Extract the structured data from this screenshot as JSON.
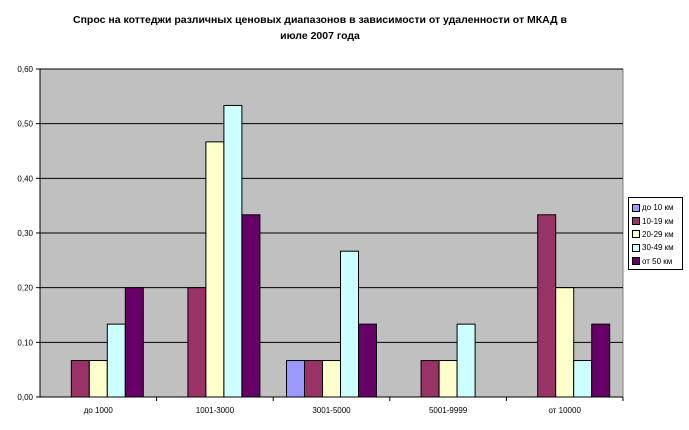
{
  "chart_data": {
    "type": "bar",
    "title": "Спрос на коттеджи различных ценовых диапазонов в зависимости от удаленности от МКАД в июле 2007 года",
    "categories": [
      "до 1000",
      "1001-3000",
      "3001-5000",
      "5001-9999",
      "от 10000"
    ],
    "series": [
      {
        "name": "до 10 км",
        "color": "#9999ff",
        "values": [
          0,
          0,
          0.0667,
          0,
          0
        ]
      },
      {
        "name": "10-19 км",
        "color": "#993366",
        "values": [
          0.0667,
          0.2,
          0.0667,
          0.0667,
          0.3333
        ]
      },
      {
        "name": "20-29 км",
        "color": "#ffffcc",
        "values": [
          0.0667,
          0.4667,
          0.0667,
          0.0667,
          0.2
        ]
      },
      {
        "name": "30-49 км",
        "color": "#ccffff",
        "values": [
          0.1333,
          0.5333,
          0.2667,
          0.1333,
          0.0667
        ]
      },
      {
        "name": "от 50 км",
        "color": "#660066",
        "values": [
          0.2,
          0.3333,
          0.1333,
          0,
          0.1333
        ]
      }
    ],
    "y_ticks": [
      "0,00",
      "0,10",
      "0,20",
      "0,30",
      "0,40",
      "0,50",
      "0,60"
    ],
    "ylim": [
      0,
      0.6
    ],
    "grid": true,
    "legend_position": "right",
    "plot_background": "#c0c0c0"
  }
}
